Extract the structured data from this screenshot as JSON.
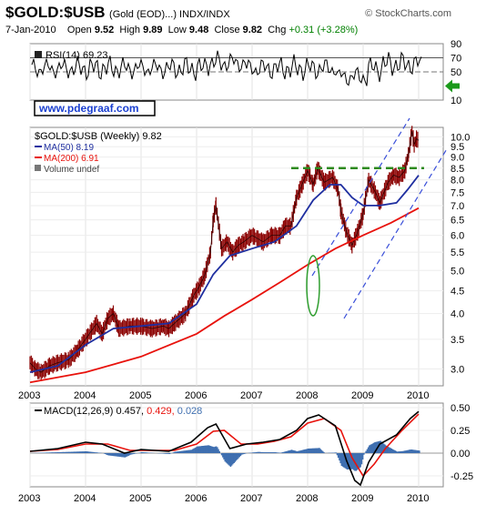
{
  "header": {
    "symbol": "$GOLD:$USB",
    "subtitle": "(Gold (EOD)...) INDX/INDX",
    "brand": "© StockCharts.com",
    "date": "7-Jan-2010",
    "open_label": "Open",
    "open": "9.52",
    "high_label": "High",
    "high": "9.89",
    "low_label": "Low",
    "low": "9.48",
    "close_label": "Close",
    "close": "9.82",
    "chg_label": "Chg",
    "chg": "+0.31 (+3.28%)"
  },
  "url_box": "www.pdegraaf.com",
  "colors": {
    "price": "#8b0000",
    "ma50": "#1f2fa0",
    "ma200": "#e8120c",
    "breakout": "#2d8a1e",
    "channel": "#3a4fd9",
    "oval": "#2f9e2f",
    "macd_hist": "#3f6fb0",
    "arrow": "#1a9a1a"
  },
  "chart_data": [
    {
      "type": "line",
      "title": "RSI(14) 69.23",
      "x": [
        "2003",
        "2004",
        "2005",
        "2006",
        "2007",
        "2008",
        "2009",
        "2010"
      ],
      "ylim": [
        10,
        90
      ],
      "yticks": [
        90,
        70,
        50,
        10
      ],
      "reference_lines": [
        70,
        50
      ],
      "last_value": 69.23,
      "arrow_level": 30
    },
    {
      "type": "line",
      "title": "$GOLD:$USB (Weekly) 9.82",
      "scale": "log",
      "ylim": [
        2.75,
        10.5
      ],
      "yticks": [
        3.0,
        3.5,
        4.0,
        4.5,
        5.0,
        5.5,
        6.0,
        6.5,
        7.0,
        7.5,
        8.0,
        8.5,
        9.0,
        9.5,
        10.0
      ],
      "xticks": [
        "2003",
        "2004",
        "2005",
        "2006",
        "2007",
        "2008",
        "2009",
        "2010"
      ],
      "legend": [
        "MA(50) 8.19",
        "MA(200) 6.91",
        "Volume undef"
      ],
      "series": [
        {
          "name": "$GOLD:$USB (Weekly) 9.82",
          "x": [
            2003.0,
            2003.1,
            2003.2,
            2003.35,
            2003.5,
            2003.7,
            2003.85,
            2004.0,
            2004.2,
            2004.3,
            2004.4,
            2004.5,
            2004.6,
            2004.8,
            2005.0,
            2005.2,
            2005.4,
            2005.5,
            2005.6,
            2005.8,
            2005.95,
            2006.05,
            2006.15,
            2006.25,
            2006.3,
            2006.35,
            2006.45,
            2006.55,
            2006.65,
            2006.75,
            2006.85,
            2007.0,
            2007.2,
            2007.35,
            2007.5,
            2007.6,
            2007.7,
            2007.8,
            2007.9,
            2008.0,
            2008.1,
            2008.18,
            2008.3,
            2008.45,
            2008.55,
            2008.6,
            2008.7,
            2008.8,
            2008.9,
            2009.0,
            2009.1,
            2009.2,
            2009.3,
            2009.45,
            2009.55,
            2009.65,
            2009.75,
            2009.82,
            2009.88,
            2009.92,
            2009.96,
            2010.0
          ],
          "y": [
            3.1,
            3.0,
            2.95,
            3.05,
            3.1,
            3.15,
            3.3,
            3.5,
            3.8,
            3.6,
            3.9,
            4.0,
            3.7,
            3.75,
            3.75,
            3.7,
            3.75,
            3.7,
            3.8,
            4.0,
            4.4,
            4.6,
            4.9,
            5.5,
            6.5,
            7.0,
            5.6,
            5.8,
            5.5,
            5.7,
            5.8,
            6.0,
            5.8,
            6.0,
            6.0,
            6.3,
            6.3,
            7.3,
            7.8,
            8.4,
            7.8,
            8.5,
            7.9,
            8.1,
            7.6,
            6.8,
            6.1,
            5.7,
            6.1,
            6.7,
            8.0,
            7.6,
            7.1,
            7.9,
            8.2,
            8.1,
            8.4,
            9.2,
            10.3,
            9.6,
            9.9,
            9.82
          ]
        },
        {
          "name": "MA(50) 8.19",
          "x": [
            2003.0,
            2003.5,
            2004.0,
            2004.5,
            2005.0,
            2005.5,
            2006.0,
            2006.3,
            2006.6,
            2007.0,
            2007.4,
            2007.8,
            2008.1,
            2008.4,
            2008.6,
            2008.8,
            2009.0,
            2009.3,
            2009.6,
            2009.8,
            2010.0
          ],
          "y": [
            2.95,
            3.05,
            3.4,
            3.7,
            3.75,
            3.8,
            4.2,
            4.9,
            5.4,
            5.6,
            5.8,
            6.3,
            7.2,
            7.8,
            7.8,
            7.3,
            7.0,
            7.0,
            7.1,
            7.6,
            8.19
          ]
        },
        {
          "name": "MA(200) 6.91",
          "x": [
            2003.0,
            2004.0,
            2005.0,
            2006.0,
            2006.5,
            2007.0,
            2007.5,
            2008.0,
            2008.5,
            2009.0,
            2009.5,
            2010.0
          ],
          "y": [
            2.8,
            2.95,
            3.2,
            3.6,
            3.95,
            4.3,
            4.7,
            5.15,
            5.6,
            6.0,
            6.4,
            6.91
          ]
        }
      ],
      "breakout_level": 8.5
    },
    {
      "type": "line",
      "title": "MACD(12,26,9) 0.457, 0.429, 0.028",
      "labels": [
        "MACD(12,26,9) 0.457,",
        "0.429,",
        "0.028"
      ],
      "ylim": [
        -0.37,
        0.55
      ],
      "yticks": [
        0.5,
        0.25,
        0.0,
        -0.25
      ],
      "xticks": [
        "2003",
        "2004",
        "2005",
        "2006",
        "2007",
        "2008",
        "2009",
        "2010"
      ],
      "series": [
        {
          "name": "MACD",
          "x": [
            2003.0,
            2003.5,
            2004.0,
            2004.3,
            2004.7,
            2005.0,
            2005.5,
            2005.9,
            2006.2,
            2006.35,
            2006.6,
            2006.9,
            2007.2,
            2007.5,
            2007.8,
            2008.0,
            2008.2,
            2008.5,
            2008.7,
            2008.85,
            2008.95,
            2009.1,
            2009.3,
            2009.6,
            2009.85,
            2010.0
          ],
          "y": [
            0.02,
            0.05,
            0.12,
            0.1,
            0.0,
            0.04,
            0.02,
            0.12,
            0.28,
            0.32,
            0.05,
            0.1,
            0.12,
            0.15,
            0.25,
            0.38,
            0.42,
            0.3,
            -0.08,
            -0.3,
            -0.35,
            -0.1,
            0.1,
            0.2,
            0.38,
            0.457
          ]
        },
        {
          "name": "Signal",
          "x": [
            2003.0,
            2003.5,
            2004.0,
            2004.4,
            2004.8,
            2005.1,
            2005.6,
            2006.0,
            2006.3,
            2006.5,
            2006.8,
            2007.1,
            2007.4,
            2007.7,
            2008.0,
            2008.3,
            2008.6,
            2008.8,
            2009.0,
            2009.2,
            2009.4,
            2009.7,
            2010.0
          ],
          "y": [
            0.02,
            0.04,
            0.1,
            0.1,
            0.03,
            0.03,
            0.03,
            0.1,
            0.24,
            0.25,
            0.1,
            0.1,
            0.13,
            0.18,
            0.33,
            0.38,
            0.25,
            -0.05,
            -0.25,
            -0.12,
            0.05,
            0.25,
            0.429
          ]
        }
      ]
    }
  ]
}
